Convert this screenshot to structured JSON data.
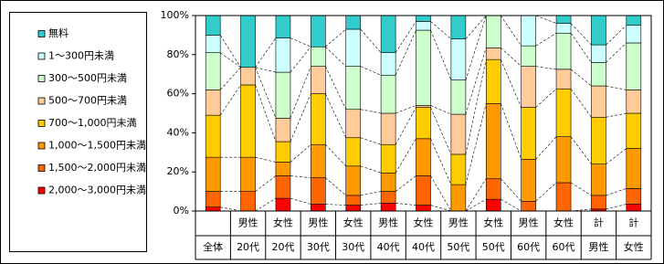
{
  "chart_data": {
    "type": "stacked_bar_100",
    "categories": [
      [
        "全体"
      ],
      [
        "男性",
        "20代"
      ],
      [
        "女性",
        "20代"
      ],
      [
        "男性",
        "30代"
      ],
      [
        "女性",
        "30代"
      ],
      [
        "男性",
        "40代"
      ],
      [
        "女性",
        "40代"
      ],
      [
        "男性",
        "50代"
      ],
      [
        "女性",
        "50代"
      ],
      [
        "男性",
        "60代"
      ],
      [
        "女性",
        "60代"
      ],
      [
        "計",
        "男性"
      ],
      [
        "計",
        "女性"
      ]
    ],
    "series": [
      {
        "name": "無料",
        "color": "#33cccc",
        "values": [
          10,
          26.5,
          11.5,
          16,
          7,
          19,
          3,
          12,
          0,
          0,
          4,
          15,
          5
        ]
      },
      {
        "name": "1～300円未満",
        "color": "#ccffff",
        "values": [
          9,
          0,
          17.5,
          0,
          19,
          11.5,
          4.5,
          21,
          0,
          15.5,
          5,
          9,
          9
        ]
      },
      {
        "name": "300～500円未満",
        "color": "#ccffcc",
        "values": [
          19,
          0,
          23.5,
          10,
          22,
          19.5,
          38.5,
          17.5,
          16.5,
          10.5,
          18.5,
          12,
          24
        ]
      },
      {
        "name": "500～700円未満",
        "color": "#ffcc99",
        "values": [
          13,
          9,
          12,
          14,
          14.5,
          16,
          1,
          20.5,
          6,
          21,
          10,
          16,
          12
        ]
      },
      {
        "name": "700～1,000円未満",
        "color": "#ffcc00",
        "values": [
          21.5,
          37,
          10.5,
          26,
          14.5,
          14.5,
          16,
          15.5,
          22.5,
          26.5,
          24.5,
          24,
          18
        ]
      },
      {
        "name": "1,000～1,500円未満",
        "color": "#ff9900",
        "values": [
          17.5,
          17.5,
          7,
          17,
          15,
          9.5,
          19,
          13.5,
          38.5,
          21.5,
          23.5,
          16,
          20.5
        ]
      },
      {
        "name": "1,500～2,000円未満",
        "color": "#ff6600",
        "values": [
          8,
          10,
          11.5,
          13.5,
          5,
          6,
          15,
          0,
          10.5,
          5,
          14.5,
          7,
          8
        ]
      },
      {
        "name": "2,000～3,000円未満",
        "color": "#ff0000",
        "values": [
          2,
          0,
          6.5,
          3.5,
          3,
          4,
          3,
          0,
          6,
          0,
          0,
          1,
          3.5
        ]
      }
    ],
    "ylim": [
      0,
      100
    ],
    "yticks": [
      {
        "value": 0,
        "label": "0%"
      },
      {
        "value": 20,
        "label": "20%"
      },
      {
        "value": 40,
        "label": "40%"
      },
      {
        "value": 60,
        "label": "60%"
      },
      {
        "value": 80,
        "label": "80%"
      },
      {
        "value": 100,
        "label": "100%"
      }
    ],
    "legend": "left"
  }
}
